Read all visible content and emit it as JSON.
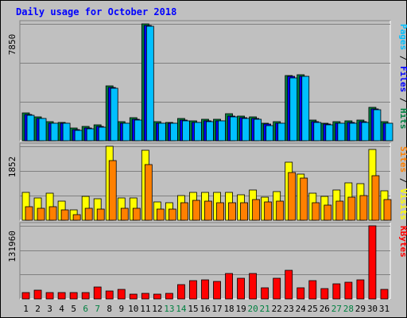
{
  "chart_data": {
    "type": "bar",
    "title": "Daily usage for October 2018",
    "categories": [
      "1",
      "2",
      "3",
      "4",
      "5",
      "6",
      "7",
      "8",
      "9",
      "10",
      "11",
      "12",
      "13",
      "14",
      "15",
      "16",
      "17",
      "18",
      "19",
      "20",
      "21",
      "22",
      "23",
      "24",
      "25",
      "26",
      "27",
      "28",
      "29",
      "30",
      "31"
    ],
    "weekend_days": [
      "6",
      "7",
      "13",
      "14",
      "20",
      "21",
      "27",
      "28"
    ],
    "panels": [
      {
        "name": "hits-files-pages",
        "ymax_label": "7850",
        "ymax": 7850,
        "grid": true,
        "side_labels": [
          {
            "text": "Hits",
            "color": "#008040"
          },
          {
            "text": " / ",
            "color": "#000000"
          },
          {
            "text": "Files",
            "color": "#0000ff"
          },
          {
            "text": " / ",
            "color": "#000000"
          },
          {
            "text": "Pages",
            "color": "#00c0ff"
          }
        ],
        "series": [
          {
            "name": "Hits",
            "color": "#008040",
            "values": [
              1850,
              1600,
              1300,
              1250,
              850,
              950,
              1050,
              3700,
              1300,
              1550,
              7850,
              1300,
              1250,
              1500,
              1350,
              1450,
              1450,
              1800,
              1650,
              1600,
              1200,
              1300,
              4400,
              4450,
              1400,
              1200,
              1300,
              1350,
              1400,
              2250,
              1300
            ]
          },
          {
            "name": "Files",
            "color": "#0000ff",
            "values": [
              1750,
              1500,
              1200,
              1150,
              750,
              850,
              950,
              3600,
              1200,
              1450,
              7750,
              1200,
              1150,
              1400,
              1250,
              1350,
              1350,
              1650,
              1550,
              1500,
              1100,
              1200,
              4300,
              4350,
              1300,
              1100,
              1200,
              1250,
              1300,
              2150,
              1200
            ]
          },
          {
            "name": "Pages",
            "color": "#00c0ff",
            "values": [
              1700,
              1500,
              1150,
              1150,
              700,
              800,
              900,
              3550,
              1150,
              1400,
              7700,
              1150,
              1150,
              1350,
              1250,
              1300,
              1350,
              1600,
              1500,
              1450,
              1000,
              1150,
              4200,
              4300,
              1250,
              1050,
              1150,
              1200,
              1250,
              2100,
              1150
            ]
          }
        ]
      },
      {
        "name": "visits-sites",
        "ymax_label": "1852",
        "ymax": 1852,
        "grid": true,
        "side_labels": [
          {
            "text": "Visits",
            "color": "#ffff00"
          },
          {
            "text": " / ",
            "color": "#000000"
          },
          {
            "text": "Sites",
            "color": "#ff8000"
          }
        ],
        "series": [
          {
            "name": "Visits",
            "color": "#ffff00",
            "values": [
              690,
              560,
              670,
              480,
              260,
              600,
              530,
              1852,
              560,
              560,
              1750,
              460,
              440,
              620,
              700,
              690,
              690,
              700,
              640,
              750,
              580,
              710,
              1450,
              1150,
              680,
              590,
              750,
              930,
              910,
              1780,
              740
            ]
          },
          {
            "name": "Sites",
            "color": "#ff8000",
            "values": [
              330,
              290,
              340,
              260,
              130,
              300,
              270,
              1500,
              300,
              290,
              1400,
              270,
              280,
              440,
              500,
              470,
              440,
              440,
              430,
              520,
              450,
              480,
              1200,
              1050,
              440,
              380,
              470,
              580,
              620,
              1120,
              520
            ]
          }
        ]
      },
      {
        "name": "kbytes",
        "ymax_label": "131960",
        "ymax": 131960,
        "grid": true,
        "side_labels": [
          {
            "text": "KBytes",
            "color": "#ff0000"
          }
        ],
        "series": [
          {
            "name": "KBytes",
            "color": "#ff0000",
            "values": [
              11000,
              16000,
              12000,
              12000,
              11000,
              11000,
              21000,
              15000,
              17000,
              8000,
              10000,
              9000,
              10000,
              26000,
              33000,
              35000,
              32000,
              46000,
              37000,
              46000,
              20000,
              37000,
              51000,
              20000,
              33000,
              19000,
              27000,
              30000,
              35000,
              131960,
              17000
            ]
          }
        ]
      }
    ]
  },
  "colors": {
    "background": "#c0c0c0",
    "title": "#0000ff",
    "weekday_label": "#000000",
    "weekend_label": "#008040",
    "gridline": "#808080"
  }
}
